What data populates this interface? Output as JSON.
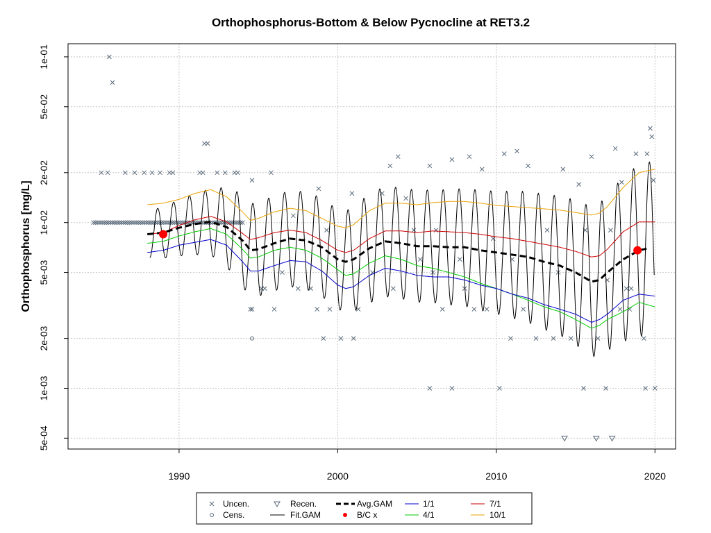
{
  "chart_data": {
    "type": "scatter",
    "title": "Orthophosphorus-Bottom & Below Pycnocline at RET3.2",
    "xlabel": "",
    "ylabel": "Orthophosphorus [mg/L]",
    "x_scale": "linear",
    "y_scale": "log",
    "xlim": [
      1983,
      2021.3
    ],
    "ylim": [
      0.00043,
      0.12
    ],
    "x_ticks": [
      1990,
      2000,
      2010,
      2020
    ],
    "x_tick_labels": [
      "1990",
      "2000",
      "2010",
      "2020"
    ],
    "y_ticks": [
      0.0005,
      0.001,
      0.002,
      0.005,
      0.01,
      0.02,
      0.05,
      0.1
    ],
    "y_tick_labels": [
      "5e-04",
      "1e-03",
      "2e-03",
      "5e-03",
      "1e-02",
      "2e-02",
      "5e-02",
      "1e-01"
    ],
    "grid": true,
    "legend_position": "bottom-center",
    "colors": {
      "uncensored": "#5a6a7a",
      "fit_gam": "#000000",
      "avg_gam": "#000000",
      "bc_points": "#ff0000",
      "q_1_1": "#0000cd",
      "q_4_1": "#00cd00",
      "q_7_1": "#cd0000",
      "q_10_1": "#e8a000"
    },
    "legend": [
      {
        "key": "unc",
        "label": "Uncen."
      },
      {
        "key": "cens",
        "label": "Cens."
      },
      {
        "key": "recen",
        "label": "Recen."
      },
      {
        "key": "fit",
        "label": "Fit.GAM"
      },
      {
        "key": "avg",
        "label": "Avg.GAM"
      },
      {
        "key": "bc",
        "label": "B/C x"
      },
      {
        "key": "q11",
        "label": "1/1"
      },
      {
        "key": "q41",
        "label": "4/1"
      },
      {
        "key": "q71",
        "label": "7/1"
      },
      {
        "key": "q101",
        "label": "10/1"
      }
    ],
    "avg_gam": [
      [
        1988.0,
        0.0085
      ],
      [
        1989.0,
        0.0087
      ],
      [
        1990.0,
        0.0093
      ],
      [
        1991.0,
        0.0098
      ],
      [
        1992.0,
        0.0101
      ],
      [
        1993.0,
        0.0094
      ],
      [
        1994.0,
        0.0078
      ],
      [
        1994.5,
        0.0068
      ],
      [
        1995.0,
        0.0069
      ],
      [
        1996.0,
        0.0075
      ],
      [
        1997.0,
        0.008
      ],
      [
        1998.0,
        0.0078
      ],
      [
        1999.0,
        0.0071
      ],
      [
        2000.0,
        0.006
      ],
      [
        2000.5,
        0.0058
      ],
      [
        2001.0,
        0.006
      ],
      [
        2002.0,
        0.007
      ],
      [
        2003.0,
        0.0077
      ],
      [
        2004.0,
        0.0075
      ],
      [
        2005.0,
        0.0072
      ],
      [
        2006.0,
        0.0072
      ],
      [
        2007.0,
        0.0071
      ],
      [
        2008.0,
        0.0071
      ],
      [
        2009.0,
        0.0068
      ],
      [
        2010.0,
        0.0066
      ],
      [
        2011.0,
        0.0064
      ],
      [
        2012.0,
        0.0062
      ],
      [
        2013.0,
        0.0058
      ],
      [
        2014.0,
        0.0055
      ],
      [
        2015.0,
        0.005
      ],
      [
        2016.0,
        0.0044
      ],
      [
        2016.5,
        0.0045
      ],
      [
        2017.0,
        0.005
      ],
      [
        2018.0,
        0.006
      ],
      [
        2019.0,
        0.0068
      ],
      [
        2019.6,
        0.007
      ]
    ],
    "quantile_7_1": [
      [
        1988.0,
        0.0085
      ],
      [
        1989.0,
        0.0087
      ],
      [
        1990.0,
        0.0096
      ],
      [
        1991.0,
        0.0104
      ],
      [
        1992.0,
        0.0109
      ],
      [
        1993.0,
        0.0101
      ],
      [
        1994.0,
        0.0086
      ],
      [
        1994.5,
        0.0079
      ],
      [
        1995.0,
        0.0081
      ],
      [
        1996.0,
        0.0087
      ],
      [
        1997.0,
        0.009
      ],
      [
        1998.0,
        0.0087
      ],
      [
        1999.0,
        0.0078
      ],
      [
        2000.0,
        0.0068
      ],
      [
        2000.5,
        0.0066
      ],
      [
        2001.0,
        0.0068
      ],
      [
        2002.0,
        0.008
      ],
      [
        2003.0,
        0.0089
      ],
      [
        2004.0,
        0.0089
      ],
      [
        2005.0,
        0.0087
      ],
      [
        2006.0,
        0.0089
      ],
      [
        2007.0,
        0.0088
      ],
      [
        2008.0,
        0.0087
      ],
      [
        2009.0,
        0.0085
      ],
      [
        2010.0,
        0.0082
      ],
      [
        2011.0,
        0.008
      ],
      [
        2012.0,
        0.0077
      ],
      [
        2013.0,
        0.0074
      ],
      [
        2014.0,
        0.0071
      ],
      [
        2015.0,
        0.0067
      ],
      [
        2016.0,
        0.0062
      ],
      [
        2016.5,
        0.0063
      ],
      [
        2017.0,
        0.0069
      ],
      [
        2018.0,
        0.0088
      ],
      [
        2019.0,
        0.0101
      ],
      [
        2020.0,
        0.0101
      ]
    ],
    "quantile_10_1": [
      [
        1988.0,
        0.0128
      ],
      [
        1989.0,
        0.0131
      ],
      [
        1990.0,
        0.0138
      ],
      [
        1991.0,
        0.015
      ],
      [
        1992.0,
        0.0158
      ],
      [
        1993.0,
        0.0143
      ],
      [
        1994.0,
        0.0116
      ],
      [
        1994.5,
        0.0103
      ],
      [
        1995.0,
        0.0106
      ],
      [
        1996.0,
        0.0116
      ],
      [
        1997.0,
        0.0122
      ],
      [
        1998.0,
        0.0118
      ],
      [
        1999.0,
        0.0106
      ],
      [
        2000.0,
        0.0095
      ],
      [
        2000.5,
        0.0093
      ],
      [
        2001.0,
        0.0097
      ],
      [
        2002.0,
        0.0118
      ],
      [
        2003.0,
        0.0131
      ],
      [
        2004.0,
        0.0131
      ],
      [
        2005.0,
        0.0128
      ],
      [
        2006.0,
        0.0132
      ],
      [
        2007.0,
        0.0134
      ],
      [
        2008.0,
        0.0134
      ],
      [
        2009.0,
        0.0131
      ],
      [
        2010.0,
        0.0127
      ],
      [
        2011.0,
        0.0125
      ],
      [
        2012.0,
        0.0123
      ],
      [
        2013.0,
        0.0121
      ],
      [
        2014.0,
        0.0119
      ],
      [
        2015.0,
        0.0115
      ],
      [
        2016.0,
        0.0111
      ],
      [
        2016.5,
        0.0114
      ],
      [
        2017.0,
        0.0125
      ],
      [
        2018.0,
        0.0163
      ],
      [
        2019.0,
        0.02
      ],
      [
        2020.0,
        0.021
      ]
    ],
    "quantile_4_1": [
      [
        1988.0,
        0.0075
      ],
      [
        1989.0,
        0.0077
      ],
      [
        1990.0,
        0.0083
      ],
      [
        1991.0,
        0.0088
      ],
      [
        1992.0,
        0.0092
      ],
      [
        1993.0,
        0.0085
      ],
      [
        1994.0,
        0.0069
      ],
      [
        1994.5,
        0.0061
      ],
      [
        1995.0,
        0.0062
      ],
      [
        1996.0,
        0.0068
      ],
      [
        1997.0,
        0.0071
      ],
      [
        1998.0,
        0.0068
      ],
      [
        1999.0,
        0.0061
      ],
      [
        2000.0,
        0.0052
      ],
      [
        2000.5,
        0.0048
      ],
      [
        2001.0,
        0.0049
      ],
      [
        2002.0,
        0.0057
      ],
      [
        2003.0,
        0.0063
      ],
      [
        2004.0,
        0.006
      ],
      [
        2005.0,
        0.0055
      ],
      [
        2006.0,
        0.0053
      ],
      [
        2007.0,
        0.005
      ],
      [
        2008.0,
        0.0047
      ],
      [
        2009.0,
        0.0043
      ],
      [
        2010.0,
        0.004
      ],
      [
        2011.0,
        0.0037
      ],
      [
        2012.0,
        0.0034
      ],
      [
        2013.0,
        0.0031
      ],
      [
        2014.0,
        0.0029
      ],
      [
        2015.0,
        0.0026
      ],
      [
        2016.0,
        0.0023
      ],
      [
        2016.5,
        0.0024
      ],
      [
        2017.0,
        0.0026
      ],
      [
        2018.0,
        0.0029
      ],
      [
        2019.0,
        0.0033
      ],
      [
        2020.0,
        0.0031
      ]
    ],
    "quantile_1_1": [
      [
        1988.0,
        0.0066
      ],
      [
        1989.0,
        0.0068
      ],
      [
        1990.0,
        0.0073
      ],
      [
        1991.0,
        0.0076
      ],
      [
        1992.0,
        0.0079
      ],
      [
        1993.0,
        0.0073
      ],
      [
        1994.0,
        0.0058
      ],
      [
        1994.5,
        0.0051
      ],
      [
        1995.0,
        0.0051
      ],
      [
        1996.0,
        0.0055
      ],
      [
        1997.0,
        0.0059
      ],
      [
        1998.0,
        0.0058
      ],
      [
        1999.0,
        0.0051
      ],
      [
        2000.0,
        0.0042
      ],
      [
        2000.5,
        0.004
      ],
      [
        2001.0,
        0.0041
      ],
      [
        2002.0,
        0.0048
      ],
      [
        2003.0,
        0.0053
      ],
      [
        2004.0,
        0.0051
      ],
      [
        2005.0,
        0.0048
      ],
      [
        2006.0,
        0.0047
      ],
      [
        2007.0,
        0.0047
      ],
      [
        2008.0,
        0.0045
      ],
      [
        2009.0,
        0.0042
      ],
      [
        2010.0,
        0.004
      ],
      [
        2011.0,
        0.0037
      ],
      [
        2012.0,
        0.0035
      ],
      [
        2013.0,
        0.0032
      ],
      [
        2014.0,
        0.003
      ],
      [
        2015.0,
        0.0028
      ],
      [
        2016.0,
        0.0025
      ],
      [
        2016.5,
        0.0026
      ],
      [
        2017.0,
        0.0028
      ],
      [
        2018.0,
        0.0034
      ],
      [
        2019.0,
        0.0037
      ],
      [
        2020.0,
        0.0036
      ]
    ],
    "fit_gam_seasonal": {
      "x_start": 1988.15,
      "x_end": 2019.95,
      "center_series": "avg_gam",
      "amplitude_log10": [
        [
          1988.0,
          0.14
        ],
        [
          1992.0,
          0.2
        ],
        [
          1994.0,
          0.28
        ],
        [
          2000.0,
          0.3
        ],
        [
          2002.0,
          0.33
        ],
        [
          2006.0,
          0.34
        ],
        [
          2010.0,
          0.37
        ],
        [
          2014.0,
          0.42
        ],
        [
          2016.5,
          0.46
        ],
        [
          2019.0,
          0.52
        ],
        [
          2020.0,
          0.52
        ]
      ],
      "peak_phase": 0.65
    },
    "bc_points": [
      {
        "x": 1989.0,
        "y": 0.0085
      },
      {
        "x": 2018.9,
        "y": 0.0068
      }
    ],
    "uncensored_points": [
      [
        1985.1,
        0.02
      ],
      [
        1985.5,
        0.02
      ],
      [
        1985.6,
        0.1
      ],
      [
        1985.8,
        0.07
      ],
      [
        1986.6,
        0.02
      ],
      [
        1987.2,
        0.02
      ],
      [
        1987.8,
        0.02
      ],
      [
        1988.3,
        0.02
      ],
      [
        1988.8,
        0.02
      ],
      [
        1989.4,
        0.02
      ],
      [
        1989.6,
        0.02
      ],
      [
        1991.3,
        0.02
      ],
      [
        1991.5,
        0.02
      ],
      [
        1992.4,
        0.02
      ],
      [
        1992.9,
        0.02
      ],
      [
        1993.5,
        0.02
      ],
      [
        1993.7,
        0.02
      ],
      [
        1991.6,
        0.03
      ],
      [
        1991.8,
        0.03
      ],
      [
        1994.6,
        0.018
      ],
      [
        1995.8,
        0.02
      ],
      [
        1994.5,
        0.003
      ],
      [
        1994.6,
        0.003
      ],
      [
        1995.2,
        0.004
      ],
      [
        1995.4,
        0.004
      ],
      [
        1996.0,
        0.003
      ],
      [
        1997.5,
        0.004
      ],
      [
        1998.3,
        0.004
      ],
      [
        1998.7,
        0.003
      ],
      [
        1999.1,
        0.002
      ],
      [
        1999.5,
        0.003
      ],
      [
        2000.2,
        0.002
      ],
      [
        2001.0,
        0.002
      ],
      [
        2001.3,
        0.003
      ],
      [
        1996.5,
        0.005
      ],
      [
        1997.2,
        0.011
      ],
      [
        1998.8,
        0.016
      ],
      [
        1999.3,
        0.009
      ],
      [
        2002.2,
        0.005
      ],
      [
        2002.8,
        0.015
      ],
      [
        2003.3,
        0.022
      ],
      [
        2003.8,
        0.025
      ],
      [
        2004.3,
        0.014
      ],
      [
        2004.8,
        0.009
      ],
      [
        2005.2,
        0.006
      ],
      [
        2005.8,
        0.022
      ],
      [
        2006.2,
        0.009
      ],
      [
        2006.6,
        0.003
      ],
      [
        2007.2,
        0.024
      ],
      [
        2007.7,
        0.006
      ],
      [
        2008.3,
        0.025
      ],
      [
        2008.6,
        0.003
      ],
      [
        2009.1,
        0.021
      ],
      [
        2009.4,
        0.003
      ],
      [
        2009.8,
        0.008
      ],
      [
        2010.5,
        0.026
      ],
      [
        2010.9,
        0.002
      ],
      [
        2011.3,
        0.027
      ],
      [
        2011.7,
        0.003
      ],
      [
        2012.0,
        0.022
      ],
      [
        2012.5,
        0.002
      ],
      [
        2013.2,
        0.009
      ],
      [
        2013.6,
        0.002
      ],
      [
        2014.2,
        0.021
      ],
      [
        2014.7,
        0.002
      ],
      [
        2015.2,
        0.017
      ],
      [
        2015.6,
        0.009
      ],
      [
        2016.0,
        0.025
      ],
      [
        2016.4,
        0.002
      ],
      [
        2017.2,
        0.009
      ],
      [
        2017.5,
        0.028
      ],
      [
        2017.8,
        0.003
      ],
      [
        2018.2,
        0.004
      ],
      [
        2018.5,
        0.004
      ],
      [
        2018.8,
        0.026
      ],
      [
        2019.3,
        0.002
      ],
      [
        2019.7,
        0.037
      ],
      [
        2019.8,
        0.033
      ],
      [
        2019.9,
        0.018
      ],
      [
        2005.8,
        0.001
      ],
      [
        2007.2,
        0.001
      ],
      [
        2010.2,
        0.001
      ],
      [
        2015.5,
        0.001
      ],
      [
        2016.9,
        0.001
      ],
      [
        2019.4,
        0.001
      ],
      [
        2020.0,
        0.001
      ],
      [
        2000.9,
        0.015
      ],
      [
        2003.5,
        0.004
      ],
      [
        2006.0,
        0.005
      ],
      [
        2008.0,
        0.004
      ],
      [
        2011.0,
        0.006
      ],
      [
        2013.9,
        0.005
      ],
      [
        2017.0,
        0.0045
      ],
      [
        2017.9,
        0.0175
      ],
      [
        2018.4,
        0.003
      ],
      [
        2019.5,
        0.026
      ]
    ],
    "uncensored_dense_band": {
      "x_start": 1984.6,
      "x_end": 1994.0,
      "y": 0.01,
      "count": 80
    },
    "censored_points": [
      [
        1994.6,
        0.002
      ]
    ],
    "recensored_points": [
      [
        2014.3,
        0.0005
      ],
      [
        2016.3,
        0.0005
      ],
      [
        2017.3,
        0.0005
      ]
    ]
  }
}
